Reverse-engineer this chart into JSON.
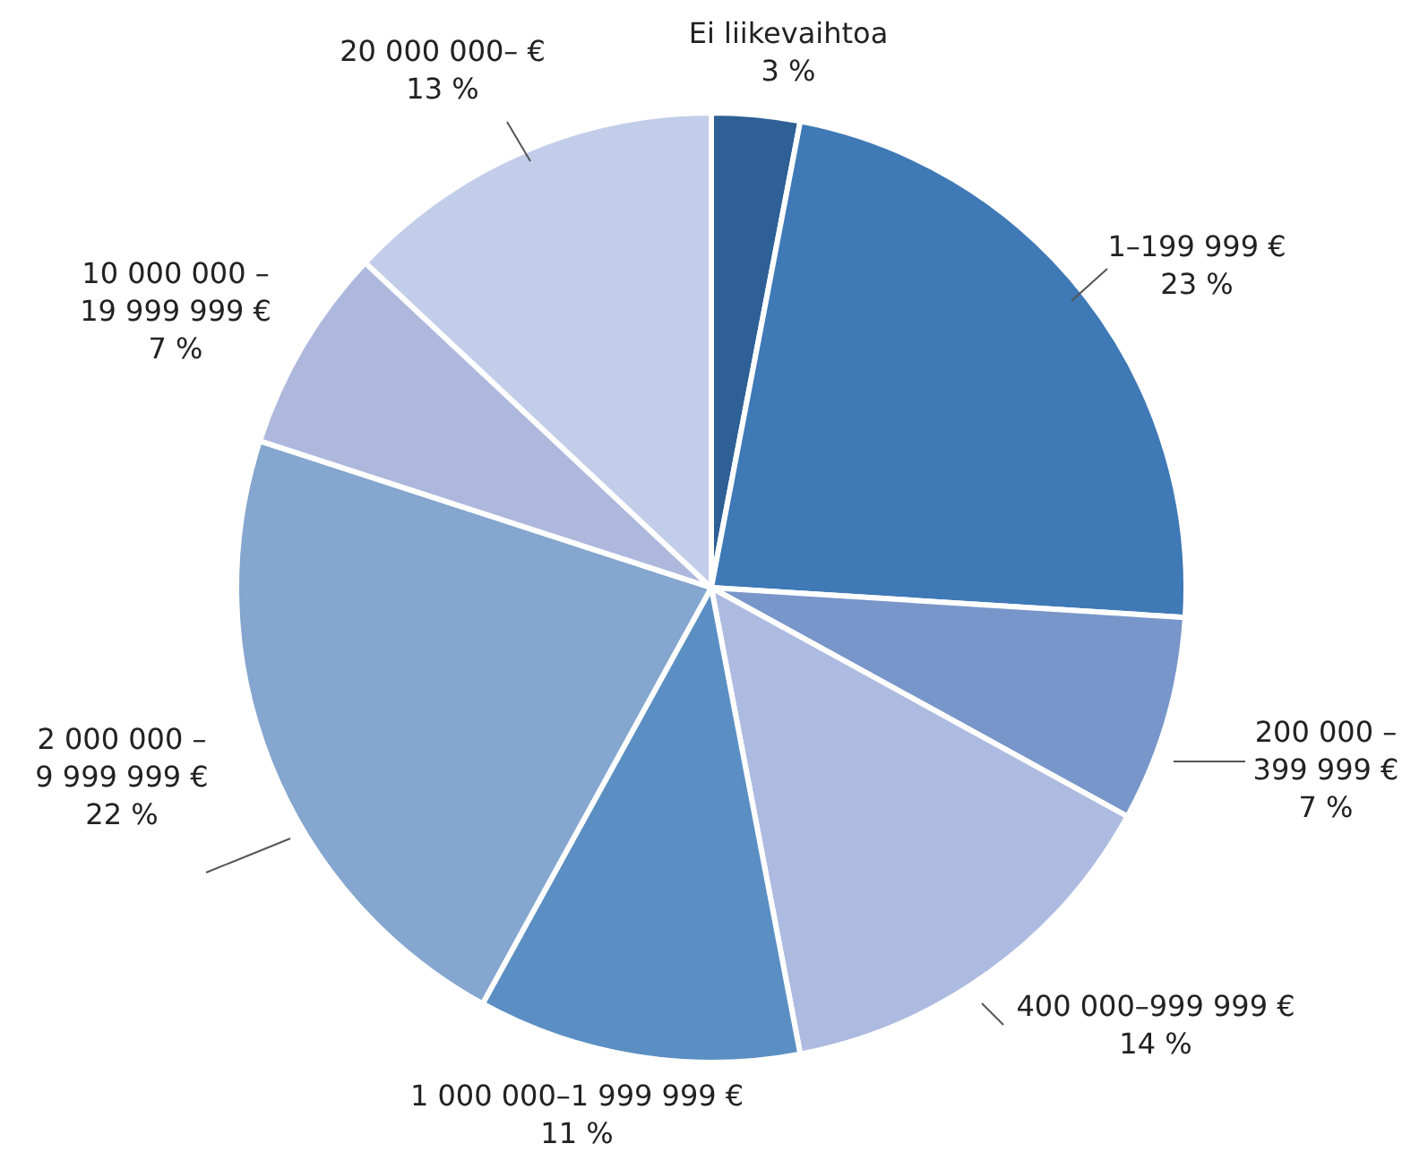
{
  "chart_data": {
    "type": "pie",
    "categories": [
      "Ei liikevaihtoa",
      "1–199 999 €",
      "200 000 – 399 999 €",
      "400 000–999 999 €",
      "1 000 000–1 999 999 €",
      "2 000 000 – 9 999 999 €",
      "10 000 000 – 19 999 999 €",
      "20 000 000– €"
    ],
    "values": [
      3,
      23,
      7,
      14,
      11,
      22,
      7,
      13
    ],
    "colors": [
      "#2e6096",
      "#3f79b6",
      "#7896c9",
      "#aebbe0",
      "#5b8fc3",
      "#84a6cf",
      "#aeb8dd",
      "#c2cde9"
    ],
    "value_labels": [
      "3 %",
      "23 %",
      "7 %",
      "14 %",
      "11 %",
      "22 %",
      "7 %",
      "13 %"
    ]
  }
}
